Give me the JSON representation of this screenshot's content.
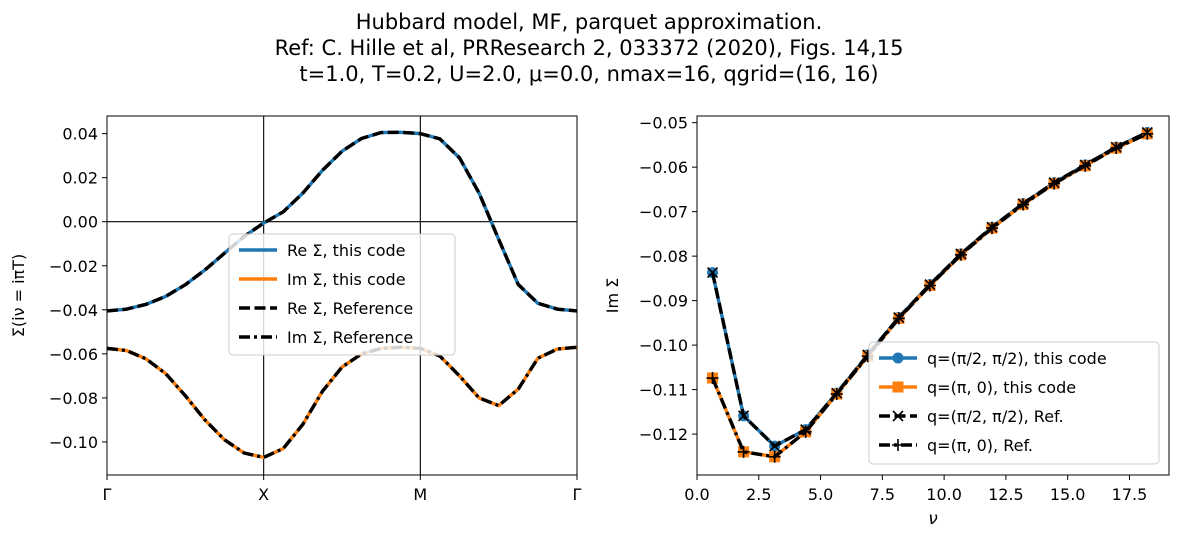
{
  "figure": {
    "title_lines": [
      "Hubbard model, MF, parquet approximation.",
      "Ref: C. Hille et al, PRResearch 2, 033372 (2020), Figs. 14,15",
      "t=1.0, T=0.2, U=2.0, μ=0.0, nmax=16, qgrid=(16, 16)"
    ]
  },
  "colors": {
    "blue": "#1f77b4",
    "orange": "#ff7f0e",
    "black": "#000000"
  },
  "chart_data": [
    {
      "type": "line",
      "xlabel": "",
      "ylabel": "Σ(iν = iπT)",
      "xlim": [
        0,
        3
      ],
      "ylim": [
        -0.115,
        0.048
      ],
      "xticks": [
        {
          "value": 0,
          "label": "Γ"
        },
        {
          "value": 1,
          "label": "X"
        },
        {
          "value": 2,
          "label": "M"
        },
        {
          "value": 3,
          "label": "Γ"
        }
      ],
      "yticks": [
        {
          "value": 0.04,
          "label": "0.04"
        },
        {
          "value": 0.02,
          "label": "0.02"
        },
        {
          "value": 0.0,
          "label": "0.00"
        },
        {
          "value": -0.02,
          "label": "−0.02"
        },
        {
          "value": -0.04,
          "label": "−0.04"
        },
        {
          "value": -0.06,
          "label": "−0.06"
        },
        {
          "value": -0.08,
          "label": "−0.08"
        },
        {
          "value": -0.1,
          "label": "−0.10"
        }
      ],
      "reference_lines": {
        "vertical": [
          1,
          2
        ],
        "horizontal": [
          0
        ]
      },
      "legend_position": "center",
      "x": [
        0,
        0.125,
        0.25,
        0.375,
        0.5,
        0.625,
        0.75,
        0.875,
        1.0,
        1.125,
        1.25,
        1.375,
        1.5,
        1.625,
        1.75,
        1.875,
        2.0,
        2.125,
        2.25,
        2.375,
        2.5,
        2.625,
        2.75,
        2.875,
        3.0
      ],
      "series": [
        {
          "name": "Re Σ, this code",
          "color": "#1f77b4",
          "style": "solid",
          "values": [
            -0.0405,
            -0.0397,
            -0.0375,
            -0.0339,
            -0.0286,
            -0.0219,
            -0.0143,
            -0.0067,
            -0.0006,
            0.0045,
            0.013,
            0.0233,
            0.032,
            0.0378,
            0.0405,
            0.0406,
            0.04,
            0.0376,
            0.029,
            0.013,
            -0.008,
            -0.0285,
            -0.037,
            -0.0397,
            -0.0405
          ]
        },
        {
          "name": "Im Σ, this code",
          "color": "#ff7f0e",
          "style": "solid",
          "values": [
            -0.0575,
            -0.0585,
            -0.0623,
            -0.069,
            -0.079,
            -0.09,
            -0.099,
            -0.105,
            -0.107,
            -0.103,
            -0.092,
            -0.077,
            -0.066,
            -0.06,
            -0.0575,
            -0.057,
            -0.0575,
            -0.061,
            -0.07,
            -0.08,
            -0.0835,
            -0.076,
            -0.062,
            -0.0578,
            -0.057
          ]
        },
        {
          "name": "Re Σ, Reference",
          "color": "#000000",
          "style": "dashed",
          "values": [
            -0.0405,
            -0.0397,
            -0.0375,
            -0.0339,
            -0.0286,
            -0.0219,
            -0.0143,
            -0.0067,
            -0.0006,
            0.0045,
            0.013,
            0.0233,
            0.032,
            0.0378,
            0.0405,
            0.0406,
            0.04,
            0.0376,
            0.029,
            0.013,
            -0.008,
            -0.0285,
            -0.037,
            -0.0397,
            -0.0405
          ]
        },
        {
          "name": "Im Σ, Reference",
          "color": "#000000",
          "style": "dashdot",
          "values": [
            -0.0575,
            -0.0585,
            -0.0623,
            -0.069,
            -0.079,
            -0.09,
            -0.099,
            -0.105,
            -0.107,
            -0.103,
            -0.092,
            -0.077,
            -0.066,
            -0.06,
            -0.0575,
            -0.057,
            -0.0575,
            -0.061,
            -0.07,
            -0.08,
            -0.0835,
            -0.076,
            -0.062,
            -0.0578,
            -0.057
          ]
        }
      ]
    },
    {
      "type": "line",
      "xlabel": "ν",
      "ylabel": "Im Σ",
      "xlim": [
        0.0,
        19.1
      ],
      "ylim": [
        -0.1292,
        -0.0485
      ],
      "xticks": [
        {
          "value": 0.0,
          "label": "0.0"
        },
        {
          "value": 2.5,
          "label": "2.5"
        },
        {
          "value": 5.0,
          "label": "5.0"
        },
        {
          "value": 7.5,
          "label": "7.5"
        },
        {
          "value": 10.0,
          "label": "10.0"
        },
        {
          "value": 12.5,
          "label": "12.5"
        },
        {
          "value": 15.0,
          "label": "15.0"
        },
        {
          "value": 17.5,
          "label": "17.5"
        }
      ],
      "yticks": [
        {
          "value": -0.05,
          "label": "−0.05"
        },
        {
          "value": -0.06,
          "label": "−0.06"
        },
        {
          "value": -0.07,
          "label": "−0.07"
        },
        {
          "value": -0.08,
          "label": "−0.08"
        },
        {
          "value": -0.09,
          "label": "−0.09"
        },
        {
          "value": -0.1,
          "label": "−0.10"
        },
        {
          "value": -0.11,
          "label": "−0.11"
        },
        {
          "value": -0.12,
          "label": "−0.12"
        }
      ],
      "legend_position": "lower right",
      "x": [
        0.628,
        1.885,
        3.142,
        4.398,
        5.655,
        6.912,
        8.168,
        9.425,
        10.681,
        11.938,
        13.195,
        14.451,
        15.708,
        16.965,
        18.221
      ],
      "series": [
        {
          "name": "q=(π/2, π/2), this code",
          "color": "#1f77b4",
          "style": "solid",
          "marker": "circle",
          "values": [
            -0.0837,
            -0.1159,
            -0.1227,
            -0.119,
            -0.1108,
            -0.1022,
            -0.0938,
            -0.0864,
            -0.0795,
            -0.0735,
            -0.0682,
            -0.0635,
            -0.0595,
            -0.0555,
            -0.0522
          ]
        },
        {
          "name": "q=(π, 0), this code",
          "color": "#ff7f0e",
          "style": "solid",
          "marker": "square",
          "values": [
            -0.1074,
            -0.124,
            -0.1251,
            -0.1195,
            -0.111,
            -0.1025,
            -0.094,
            -0.0866,
            -0.0797,
            -0.0737,
            -0.0684,
            -0.0637,
            -0.0597,
            -0.0557,
            -0.0525
          ]
        },
        {
          "name": "q=(π/2, π/2), Ref.",
          "color": "#000000",
          "style": "dashed",
          "marker": "x",
          "values": [
            -0.0837,
            -0.1159,
            -0.1227,
            -0.119,
            -0.1108,
            -0.1022,
            -0.0938,
            -0.0864,
            -0.0795,
            -0.0735,
            -0.0682,
            -0.0635,
            -0.0595,
            -0.0555,
            -0.0522
          ]
        },
        {
          "name": "q=(π, 0), Ref.",
          "color": "#000000",
          "style": "dashdot",
          "marker": "plus",
          "values": [
            -0.1074,
            -0.124,
            -0.1251,
            -0.1195,
            -0.111,
            -0.1025,
            -0.094,
            -0.0866,
            -0.0797,
            -0.0737,
            -0.0684,
            -0.0637,
            -0.0597,
            -0.0557,
            -0.0525
          ]
        }
      ]
    }
  ]
}
